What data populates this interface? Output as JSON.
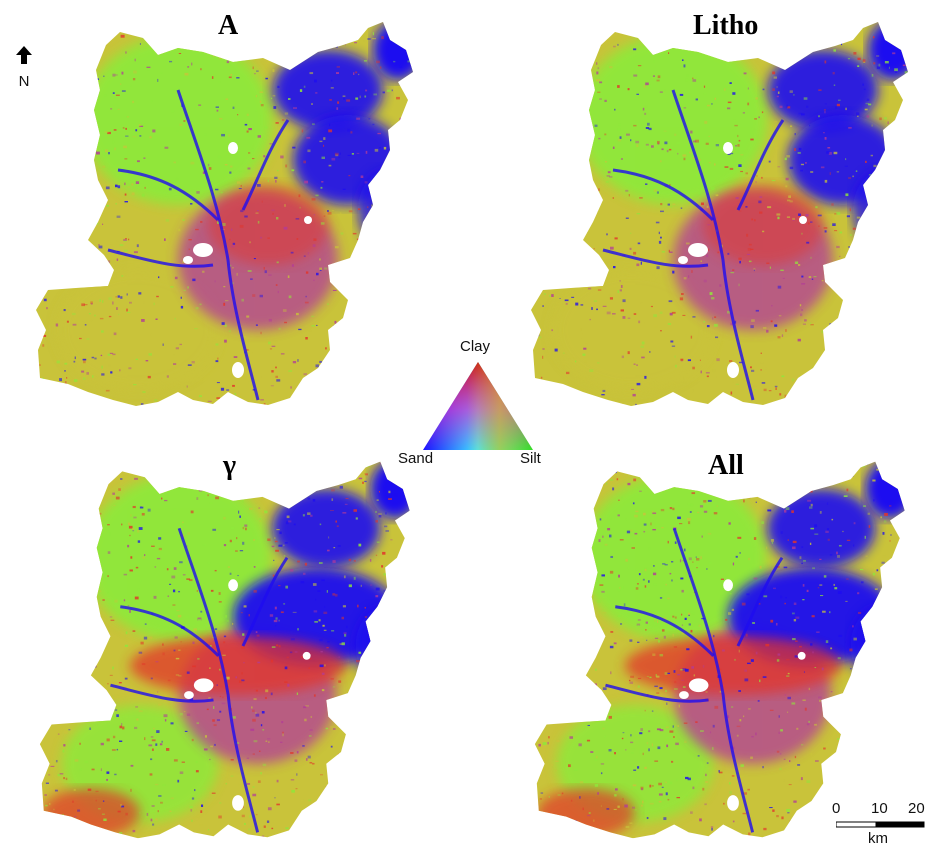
{
  "panels": [
    {
      "id": "A",
      "title": "A",
      "variant": "a"
    },
    {
      "id": "litho",
      "title": "Litho",
      "variant": "a"
    },
    {
      "id": "gamma",
      "title": "γ",
      "variant": "g"
    },
    {
      "id": "all",
      "title": "All",
      "variant": "g"
    }
  ],
  "north_arrow": {
    "label": "N"
  },
  "legend": {
    "type": "soil texture ternary",
    "vertices": {
      "top": "Clay",
      "left": "Sand",
      "right": "Silt"
    },
    "colors": {
      "Clay": "#cc1010",
      "Sand": "#1a10ff",
      "Silt": "#30e020",
      "mid_red_magenta": "#ff10a0",
      "mid_sand_silt": "#30e8ff",
      "mid_clay_silt": "#e0b020"
    }
  },
  "scale_bar": {
    "ticks": [
      "0",
      "10",
      "20"
    ],
    "unit": "km"
  },
  "map_colors": {
    "sand": "#1e0df0",
    "silt": "#8fe83a",
    "clay": "#e2342a",
    "loam": "#c9c33a",
    "mixed": "#b23a9a",
    "nodata": "#ffffff"
  }
}
